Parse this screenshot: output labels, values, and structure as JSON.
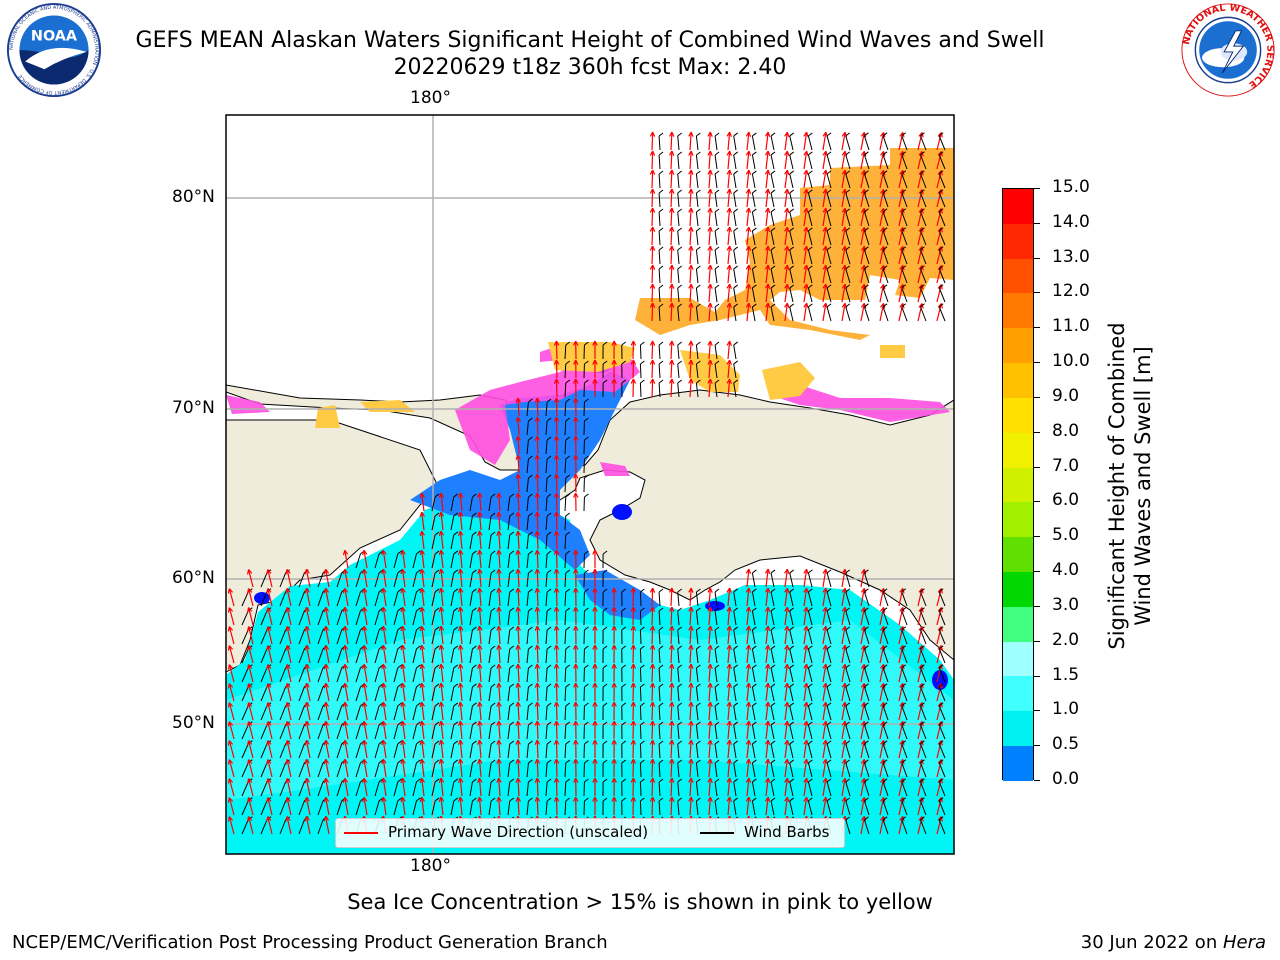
{
  "header": {
    "title_line1": "GEFS MEAN Alaskan Waters Significant Height of Combined Wind Waves and Swell",
    "title_line2": "20220629 t18z 360h fcst   Max: 2.40"
  },
  "logos": {
    "left": {
      "text": "NOAA",
      "ring_text": "NATIONAL OCEANIC AND ATMOSPHERIC ADMINISTRATION · U.S. DEPARTMENT OF COMMERCE",
      "icon": "noaa-logo"
    },
    "right": {
      "ring_text": "NATIONAL WEATHER SERVICE",
      "icon": "nws-logo"
    }
  },
  "map": {
    "lon_label_top": "180°",
    "lon_label_bottom": "180°",
    "lat_labels": [
      "80°N",
      "70°N",
      "60°N",
      "50°N"
    ],
    "colors": {
      "land": "#efecdc",
      "ocean_low": "#00f5f5",
      "ocean_mid": "#44fbfb",
      "ocean_shallow": "#1f80ff",
      "ocean_deep": "#0010ff",
      "ice_pink": "#ff4ee0",
      "ice_orange": "#ffb23a",
      "ice_light": "#ffca44",
      "wave_arrow": "#ff0000",
      "wind_barb": "#000000",
      "grid": "#b0b0b0"
    }
  },
  "legend": {
    "wave_label": "Primary Wave Direction (unscaled)",
    "wind_label": "Wind Barbs",
    "wave_color": "#ff0000",
    "wind_color": "#000000"
  },
  "colorbar": {
    "title_line1": "Significant Height of Combined",
    "title_line2": "Wind Waves and Swell [m]",
    "labels": [
      "15.0",
      "14.0",
      "13.0",
      "12.0",
      "11.0",
      "10.0",
      "9.0",
      "8.0",
      "7.0",
      "6.0",
      "5.0",
      "4.0",
      "3.0",
      "2.0",
      "1.5",
      "1.0",
      "0.5",
      "0.0"
    ],
    "colors": [
      "#ff0000",
      "#ff2800",
      "#ff5000",
      "#ff7800",
      "#ffa000",
      "#ffc000",
      "#ffe000",
      "#f0f000",
      "#d0f000",
      "#a0f000",
      "#60e000",
      "#00d800",
      "#40ff80",
      "#a0ffff",
      "#40ffff",
      "#00f0f0",
      "#0080ff",
      "#0000ff"
    ]
  },
  "subcaption": "Sea Ice Concentration > 15% is shown in pink to yellow",
  "footer": {
    "left": "NCEP/EMC/Verification Post Processing Product Generation Branch",
    "right_prefix": "30 Jun 2022 on ",
    "right_host": "Hera"
  }
}
